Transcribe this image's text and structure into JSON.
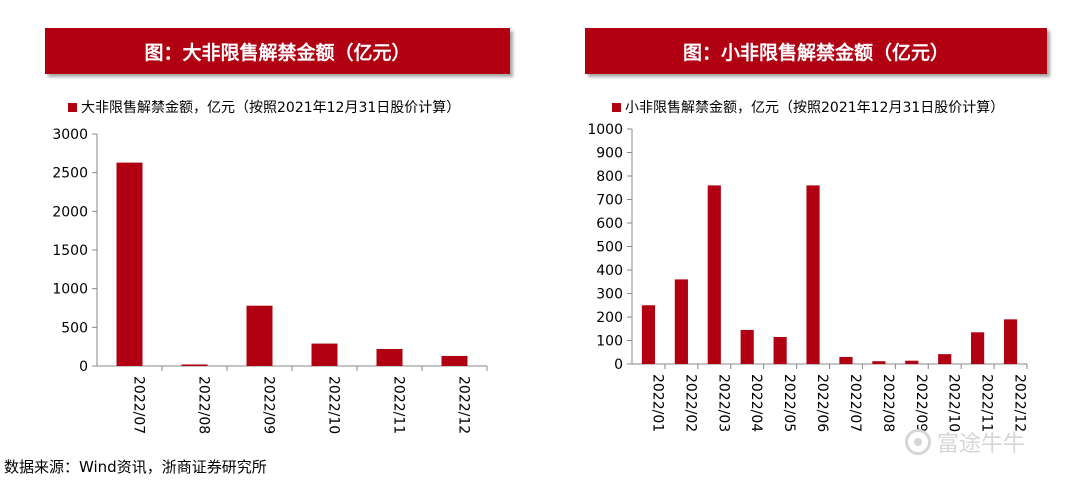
{
  "panels": [
    {
      "banner": "图：大非限售解禁金额（亿元）",
      "chart_data": {
        "type": "bar",
        "categories": [
          "2022/07",
          "2022/08",
          "2022/09",
          "2022/10",
          "2022/11",
          "2022/12"
        ],
        "series": [
          {
            "name": "大非限售解禁金额，亿元（按照2021年12月31日股价计算）",
            "values": [
              2630,
              20,
              780,
              290,
              220,
              130
            ]
          }
        ],
        "yticks": [
          0,
          500,
          1000,
          1500,
          2000,
          2500,
          3000
        ],
        "ylim": [
          0,
          3000
        ],
        "color": "#b00012",
        "legend": "top-left",
        "grid": false
      }
    },
    {
      "banner": "图：小非限售解禁金额（亿元）",
      "chart_data": {
        "type": "bar",
        "categories": [
          "2022/01",
          "2022/02",
          "2022/03",
          "2022/04",
          "2022/05",
          "2022/06",
          "2022/07",
          "2022/08",
          "2022/09",
          "2022/10",
          "2022/11",
          "2022/12"
        ],
        "series": [
          {
            "name": "小非限售解禁金额，亿元（按照2021年12月31日股价计算）",
            "values": [
              250,
              360,
              760,
              145,
              115,
              760,
              30,
              12,
              14,
              42,
              135,
              190
            ]
          }
        ],
        "yticks": [
          0,
          100,
          200,
          300,
          400,
          500,
          600,
          700,
          800,
          900,
          1000
        ],
        "ylim": [
          0,
          1000
        ],
        "color": "#b00012",
        "legend": "top-left",
        "grid": false
      }
    }
  ],
  "source": "数据来源：Wind资讯，浙商证券研究所",
  "watermark": "富途牛牛"
}
